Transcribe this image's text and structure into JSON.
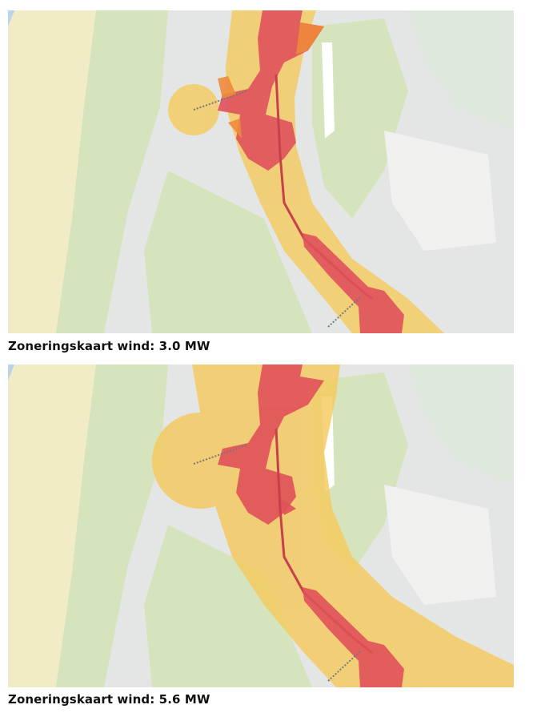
{
  "figures": [
    {
      "caption": "Zoneringskaart wind: 3.0 MW"
    },
    {
      "caption": "Zoneringskaart wind: 5.6 MW"
    }
  ],
  "legend_colors": {
    "buffer_zone": "#f5c95a",
    "restricted_zone": "#e0505a",
    "partial_zone": "#ee8a3c",
    "dunes": "#f2ecc6",
    "agriculture": "#d6e4bd",
    "urban": "#e3e6e4",
    "water": "#b9d3ea"
  }
}
